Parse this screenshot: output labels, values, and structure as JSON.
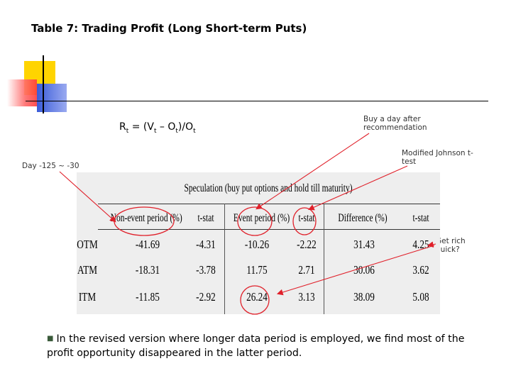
{
  "title": "Table 7: Trading Profit (Long Short-term Puts)",
  "formula": {
    "r": "R",
    "sub_t": "t",
    "eq": " = (V",
    "minus": " – O",
    "close": ")/O"
  },
  "notes": {
    "buy_day": [
      "Buy a day after",
      "recommendation"
    ],
    "modified_johnson": [
      "Modified Johnson t-",
      "test"
    ],
    "day_range": "Day -125 ~ -30",
    "get_rich": [
      "Get rich",
      "quick?"
    ]
  },
  "table": {
    "caption": "Speculation (buy put options and hold till maturity)",
    "headers": [
      "Non-event period (%)",
      "t-stat",
      "Event period (%)",
      "t-stat",
      "Difference (%)",
      "t-stat"
    ],
    "rows": [
      {
        "label": "OTM",
        "values": [
          "-41.69",
          "-4.31",
          "-10.26",
          "-2.22",
          "31.43",
          "4.25"
        ]
      },
      {
        "label": "ATM",
        "values": [
          "-18.31",
          "-3.78",
          "11.75",
          "2.71",
          "30.06",
          "3.62"
        ]
      },
      {
        "label": "ITM",
        "values": [
          "-11.85",
          "-2.92",
          "26.24",
          "3.13",
          "38.09",
          "5.08"
        ]
      }
    ]
  },
  "bottom_text": "In the revised version where longer data period is employed, we find most of the profit opportunity disappeared in the latter period.",
  "colors": {
    "accent_red": "#e0202a",
    "deco_yellow": "#ffd400",
    "deco_blue": "#3a5bd9",
    "deco_pink": "#ff6b6b"
  }
}
